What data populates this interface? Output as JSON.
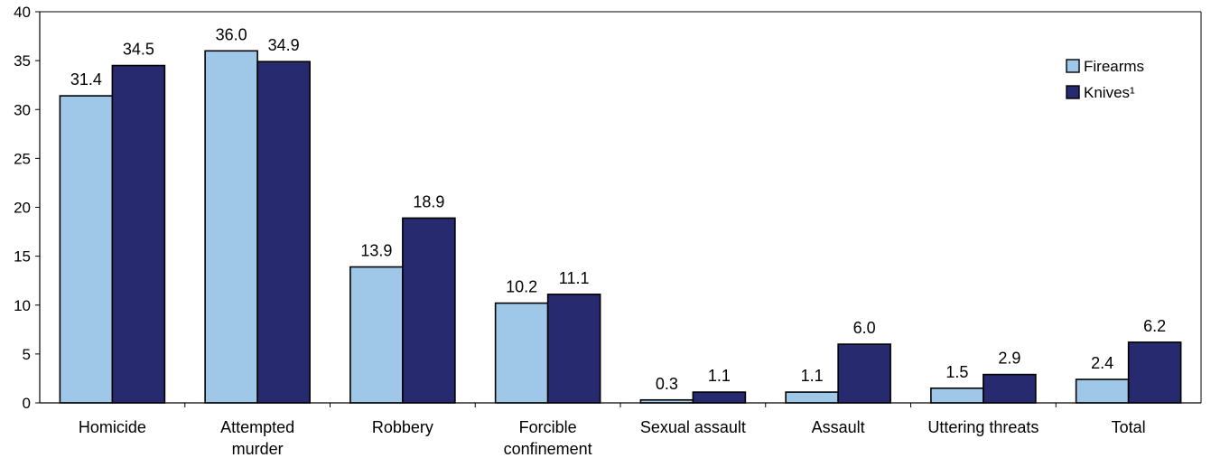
{
  "chart_data": {
    "type": "bar",
    "title": "",
    "xlabel": "",
    "ylabel": "",
    "ylim": [
      0,
      40
    ],
    "yticks": [
      0,
      5,
      10,
      15,
      20,
      25,
      30,
      35,
      40
    ],
    "grid": false,
    "legend_position": "top-right",
    "categories": [
      [
        "Homicide"
      ],
      [
        "Attempted",
        "murder"
      ],
      [
        "Robbery"
      ],
      [
        "Forcible",
        "confinement"
      ],
      [
        "Sexual assault"
      ],
      [
        "Assault"
      ],
      [
        "Uttering threats"
      ],
      [
        "Total"
      ]
    ],
    "series": [
      {
        "name": "Firearms",
        "color": "#9fc8e8",
        "values": [
          31.4,
          36.0,
          13.9,
          10.2,
          0.3,
          1.1,
          1.5,
          2.4
        ],
        "labels": [
          "31.4",
          "36.0",
          "13.9",
          "10.2",
          "0.3",
          "1.1",
          "1.5",
          "2.4"
        ]
      },
      {
        "name": "Knives¹",
        "color": "#272a6e",
        "values": [
          34.5,
          34.9,
          18.9,
          11.1,
          1.1,
          6.0,
          2.9,
          6.2
        ],
        "labels": [
          "34.5",
          "34.9",
          "18.9",
          "11.1",
          "1.1",
          "6.0",
          "2.9",
          "6.2"
        ]
      }
    ]
  }
}
